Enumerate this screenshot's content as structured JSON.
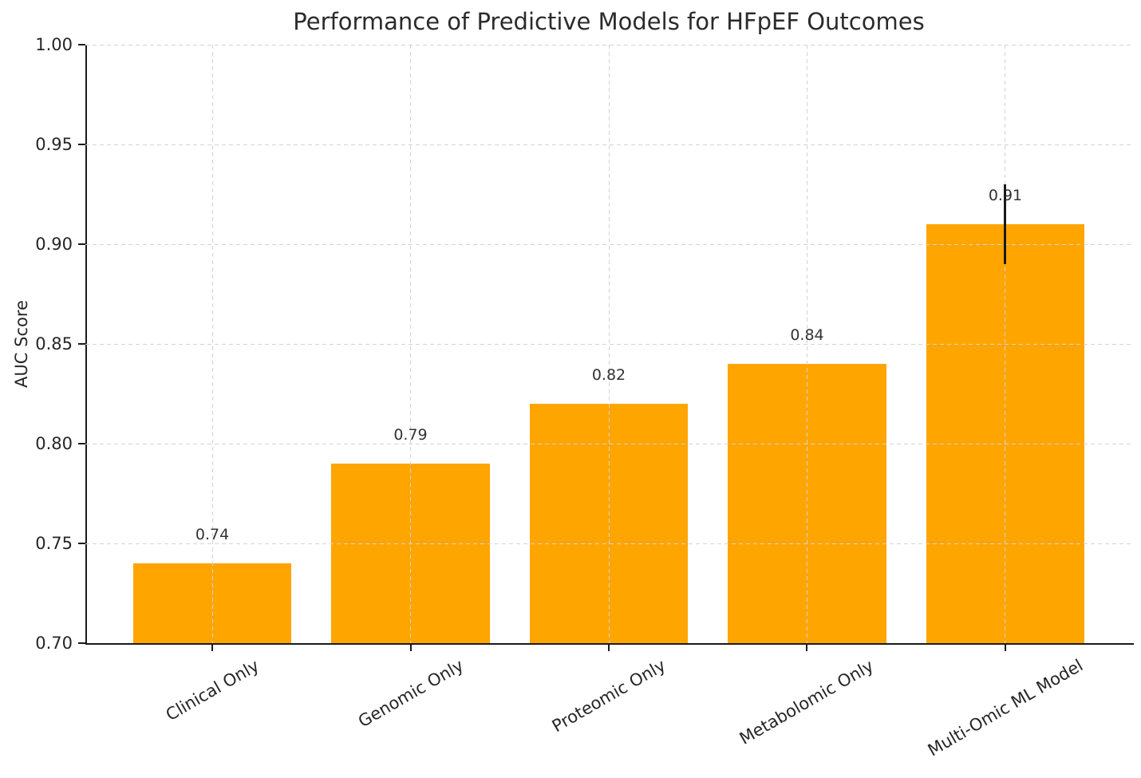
{
  "chart_data": {
    "type": "bar",
    "title": "Performance of Predictive Models for HFpEF Outcomes",
    "xlabel": "",
    "ylabel": "AUC Score",
    "categories": [
      "Clinical Only",
      "Genomic Only",
      "Proteomic Only",
      "Metabolomic Only",
      "Multi-Omic ML Model"
    ],
    "values": [
      0.74,
      0.79,
      0.82,
      0.84,
      0.91
    ],
    "value_labels": [
      "0.74",
      "0.79",
      "0.82",
      "0.84",
      "0.91"
    ],
    "error_bars": [
      {
        "index": 4,
        "category": "Multi-Omic ML Model",
        "low": 0.89,
        "high": 0.93
      }
    ],
    "ylim": [
      0.7,
      1.0
    ],
    "ytick_step": 0.05,
    "yticks": [
      "1.00",
      "0.95",
      "0.90",
      "0.85",
      "0.80",
      "0.75",
      "0.70"
    ],
    "grid": "dashed, drawn above bars",
    "legend": "none",
    "x_tick_rotation_deg": 30,
    "bar_width_fraction": 0.8,
    "bar_color": "#FFA500",
    "grid_color": "#D3D3D3",
    "axis_color": "#1A1A1A",
    "text_color": "#262626",
    "error_bar_color": "#1A1A1A"
  }
}
